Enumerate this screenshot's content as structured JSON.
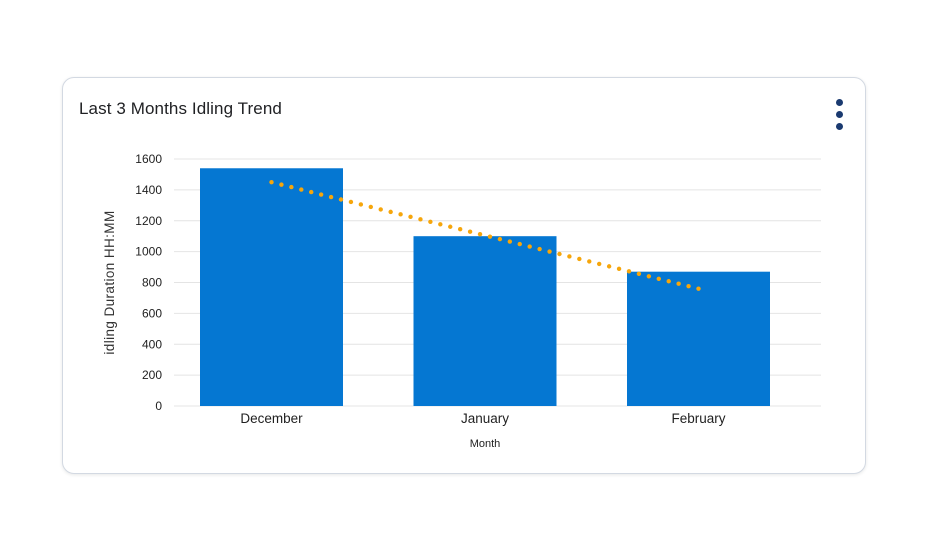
{
  "card": {
    "title": "Last 3 Months Idling Trend",
    "menu_icon": "kebab-menu"
  },
  "colors": {
    "bar": "#0577d2",
    "trendline": "#f6a60c",
    "menu_dots": "#1a3a70",
    "gridline": "#e4e4e4",
    "tick_text": "#1f1f1f",
    "axis_title_text": "#333333",
    "card_border": "#d3d9e2",
    "title_text": "#202124"
  },
  "chart_data": {
    "type": "bar",
    "title": "Last 3 Months Idling Trend",
    "categories": [
      "December",
      "January",
      "February"
    ],
    "values": [
      1540,
      1100,
      870
    ],
    "xlabel": "Month",
    "ylabel": "idling Duration HH:MM",
    "ylim": [
      0,
      1600
    ],
    "ytick_interval": 200,
    "yticks": [
      0,
      200,
      400,
      600,
      800,
      1000,
      1200,
      1400,
      1600
    ],
    "grid": true,
    "legend": "none",
    "bar_color": "#0577d2",
    "trendline": {
      "type": "linear",
      "style": "dotted",
      "color": "#f6a60c",
      "start": {
        "category": "December",
        "value": 1450
      },
      "end": {
        "category": "February",
        "value": 760
      }
    }
  }
}
